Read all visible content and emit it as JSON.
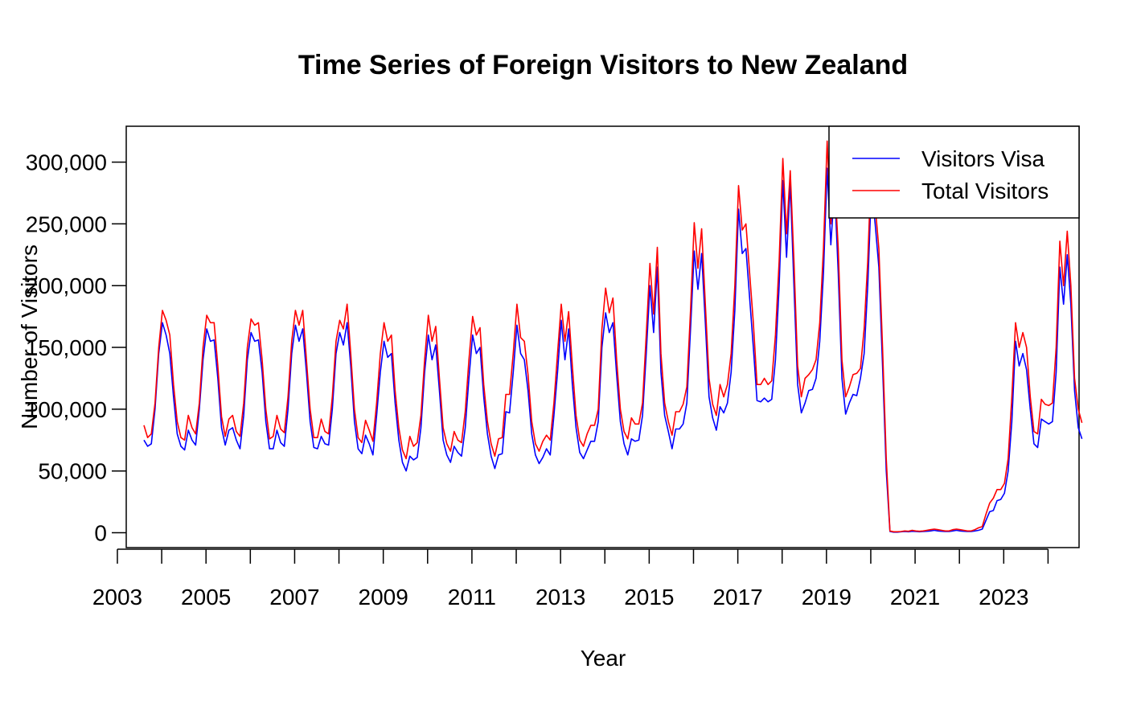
{
  "chart_data": {
    "type": "line",
    "title": "Time Series of Foreign Visitors to New Zealand",
    "xlabel": "Year",
    "ylabel": "Number of Visitors",
    "x_start": 2003.6,
    "x_step": 0.08333,
    "xlim": [
      2003.2,
      2024.7
    ],
    "ylim": [
      -12000,
      329000
    ],
    "x_ticks": [
      2003,
      2004,
      2005,
      2006,
      2007,
      2008,
      2009,
      2010,
      2011,
      2012,
      2013,
      2014,
      2015,
      2016,
      2017,
      2018,
      2019,
      2020,
      2021,
      2022,
      2023,
      2024
    ],
    "x_tick_labels": [
      "2003",
      "",
      "2005",
      "",
      "2007",
      "",
      "2009",
      "",
      "2011",
      "",
      "2013",
      "",
      "2015",
      "",
      "2017",
      "",
      "2019",
      "",
      "2021",
      "",
      "2023",
      ""
    ],
    "y_ticks": [
      0,
      50000,
      100000,
      150000,
      200000,
      250000,
      300000
    ],
    "y_tick_labels": [
      "0",
      "50,000",
      "100,000",
      "150,000",
      "200,000",
      "250,000",
      "300,000"
    ],
    "grid": false,
    "legend_position": "top-right",
    "series": [
      {
        "name": "Visitors Visa",
        "color": "#0000FF",
        "values": [
          75000,
          70000,
          72000,
          100000,
          145000,
          170000,
          160000,
          145000,
          110000,
          80000,
          70000,
          67000,
          83000,
          75000,
          71000,
          100000,
          140000,
          165000,
          155000,
          156000,
          125000,
          85000,
          71000,
          83000,
          85000,
          75000,
          68000,
          95000,
          140000,
          162000,
          155000,
          156000,
          130000,
          90000,
          68000,
          68000,
          83000,
          73000,
          70000,
          100000,
          145000,
          168000,
          155000,
          165000,
          130000,
          90000,
          69000,
          68000,
          78000,
          72000,
          71000,
          100000,
          145000,
          162000,
          152000,
          170000,
          135000,
          90000,
          68000,
          64000,
          79000,
          72000,
          63000,
          95000,
          130000,
          155000,
          142000,
          145000,
          105000,
          75000,
          57000,
          50000,
          62000,
          59000,
          61000,
          85000,
          130000,
          160000,
          140000,
          152000,
          115000,
          75000,
          63000,
          57000,
          70000,
          65000,
          62000,
          85000,
          125000,
          160000,
          145000,
          150000,
          110000,
          80000,
          62000,
          52000,
          63000,
          64000,
          98000,
          97000,
          130000,
          168000,
          145000,
          140000,
          115000,
          80000,
          63000,
          56000,
          61000,
          68000,
          63000,
          95000,
          130000,
          172000,
          140000,
          165000,
          120000,
          85000,
          65000,
          60000,
          67000,
          74000,
          74000,
          90000,
          150000,
          178000,
          162000,
          170000,
          128000,
          90000,
          72000,
          63000,
          76000,
          74000,
          75000,
          95000,
          145000,
          200000,
          162000,
          215000,
          130000,
          95000,
          82000,
          68000,
          84000,
          84000,
          88000,
          105000,
          165000,
          228000,
          197000,
          226000,
          170000,
          110000,
          93000,
          83000,
          102000,
          97000,
          105000,
          130000,
          180000,
          262000,
          226000,
          230000,
          190000,
          150000,
          107000,
          106000,
          109000,
          106000,
          108000,
          140000,
          200000,
          285000,
          223000,
          283000,
          200000,
          120000,
          97000,
          105000,
          115000,
          116000,
          125000,
          155000,
          210000,
          295000,
          233000,
          280000,
          210000,
          125000,
          96000,
          105000,
          112000,
          111000,
          125000,
          145000,
          200000,
          280000,
          250000,
          215000,
          135000,
          50000,
          1000,
          500,
          500,
          800,
          1000,
          800,
          1200,
          1000,
          800,
          1000,
          1200,
          1500,
          2000,
          1500,
          1200,
          1000,
          1000,
          1500,
          2000,
          1500,
          1200,
          1000,
          1000,
          1500,
          2000,
          3000,
          10000,
          17000,
          18000,
          26000,
          27000,
          32000,
          50000,
          90000,
          155000,
          135000,
          145000,
          132000,
          100000,
          72000,
          69000,
          92000,
          90000,
          88000,
          90000,
          130000,
          215000,
          185000,
          225000,
          185000,
          115000,
          85000,
          76000
        ]
      },
      {
        "name": "Total Visitors",
        "color": "#FF0000",
        "values": [
          87000,
          77000,
          80000,
          105000,
          150000,
          180000,
          172000,
          160000,
          120000,
          90000,
          77000,
          75000,
          95000,
          85000,
          80000,
          105000,
          150000,
          176000,
          170000,
          170000,
          135000,
          94000,
          78000,
          92000,
          95000,
          82000,
          78000,
          105000,
          150000,
          173000,
          168000,
          170000,
          140000,
          100000,
          76000,
          78000,
          95000,
          84000,
          81000,
          110000,
          155000,
          180000,
          168000,
          180000,
          140000,
          100000,
          77000,
          77000,
          92000,
          82000,
          80000,
          110000,
          155000,
          172000,
          165000,
          185000,
          145000,
          100000,
          77000,
          73000,
          91000,
          83000,
          74000,
          105000,
          145000,
          170000,
          155000,
          160000,
          115000,
          85000,
          67000,
          60000,
          78000,
          70000,
          73000,
          95000,
          140000,
          176000,
          155000,
          167000,
          125000,
          85000,
          72000,
          66000,
          82000,
          75000,
          73000,
          98000,
          140000,
          175000,
          160000,
          166000,
          120000,
          90000,
          72000,
          62000,
          76000,
          77000,
          112000,
          112000,
          145000,
          185000,
          158000,
          155000,
          128000,
          90000,
          72000,
          66000,
          74000,
          79000,
          75000,
          105000,
          145000,
          185000,
          155000,
          179000,
          135000,
          95000,
          75000,
          70000,
          80000,
          87000,
          87000,
          100000,
          165000,
          198000,
          178000,
          190000,
          140000,
          100000,
          82000,
          76000,
          93000,
          88000,
          88000,
          105000,
          160000,
          218000,
          177000,
          231000,
          145000,
          105000,
          90000,
          79000,
          98000,
          98000,
          104000,
          118000,
          180000,
          251000,
          214000,
          246000,
          185000,
          125000,
          104000,
          95000,
          120000,
          110000,
          120000,
          145000,
          200000,
          281000,
          245000,
          250000,
          210000,
          170000,
          120000,
          120000,
          125000,
          120000,
          123000,
          160000,
          220000,
          303000,
          242000,
          293000,
          220000,
          135000,
          110000,
          125000,
          128000,
          132000,
          140000,
          170000,
          230000,
          317000,
          250000,
          287000,
          230000,
          140000,
          110000,
          118000,
          128000,
          129000,
          133000,
          165000,
          220000,
          300000,
          265000,
          230000,
          150000,
          60000,
          1500,
          800,
          800,
          1000,
          1500,
          1200,
          2000,
          1500,
          1200,
          1500,
          2000,
          2500,
          3000,
          2500,
          2000,
          1500,
          1500,
          2500,
          3000,
          2500,
          2000,
          1500,
          1500,
          2500,
          4000,
          5000,
          15000,
          24000,
          28000,
          35000,
          35000,
          40000,
          60000,
          110000,
          170000,
          150000,
          162000,
          150000,
          110000,
          82000,
          80000,
          108000,
          104000,
          103000,
          105000,
          150000,
          236000,
          200000,
          244000,
          200000,
          125000,
          100000,
          89000
        ]
      }
    ]
  }
}
